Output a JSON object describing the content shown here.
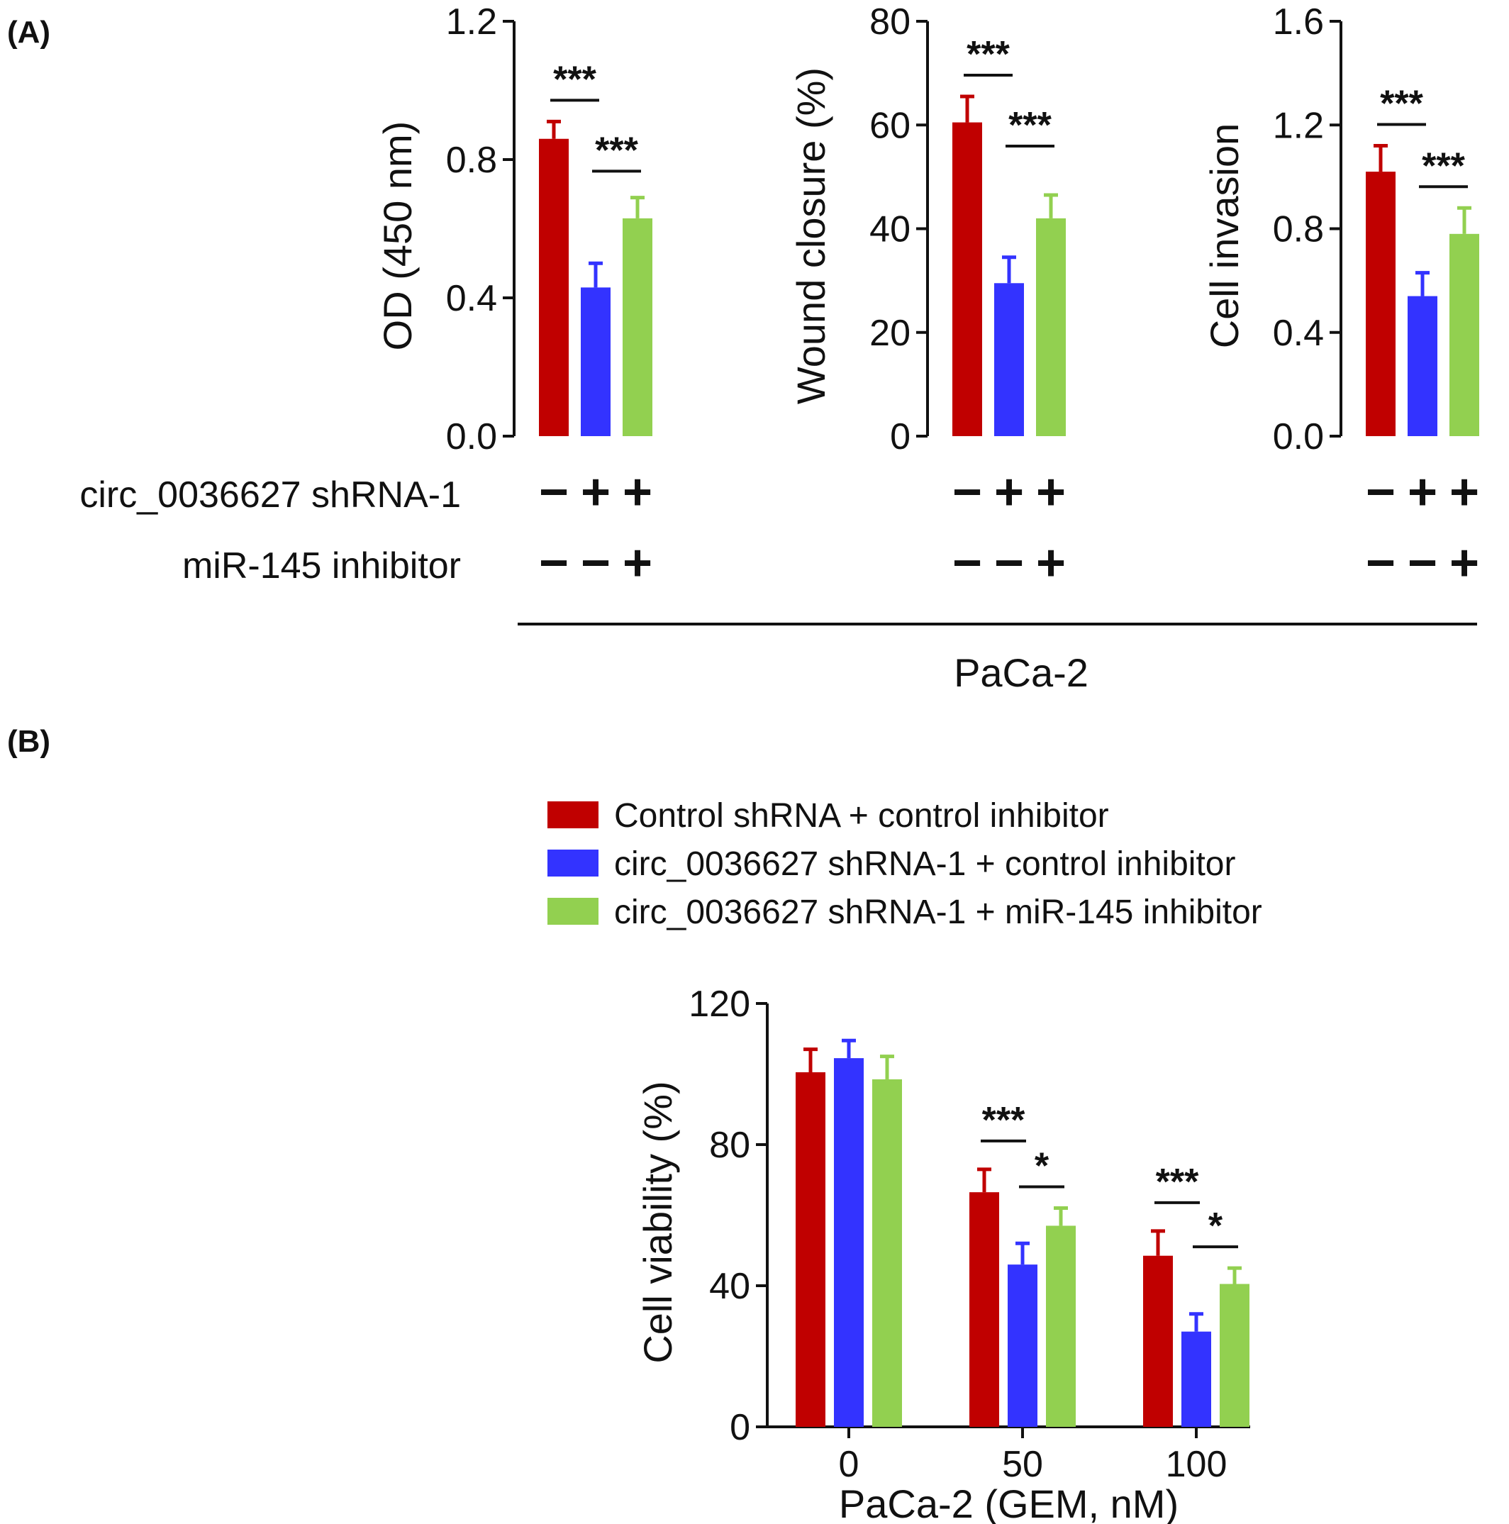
{
  "panel_labels": {
    "a": "(A)",
    "b": "(B)"
  },
  "row_labels": {
    "shrna": "circ_0036627 shRNA-1",
    "inhibitor": "miR-145 inhibitor"
  },
  "group_label": "PaCa-2",
  "colors": {
    "red": "#c00000",
    "blue": "#3333ff",
    "green": "#92d050"
  },
  "legend": [
    {
      "label": "Control shRNA + control inhibitor",
      "color": "#c00000"
    },
    {
      "label": "circ_0036627 shRNA-1 + control inhibitor",
      "color": "#3333ff"
    },
    {
      "label": "circ_0036627 shRNA-1 + miR-145 inhibitor",
      "color": "#92d050"
    }
  ],
  "chart_data": [
    {
      "type": "bar",
      "ylabel": "OD (450 nm)",
      "ylim": [
        0,
        1.2
      ],
      "yticks": [
        "0.0",
        "0.4",
        "0.8",
        "1.2"
      ],
      "shrna": [
        "−",
        "+",
        "+"
      ],
      "inhibitor": [
        "−",
        "−",
        "+"
      ],
      "values": [
        0.86,
        0.43,
        0.63
      ],
      "errors": [
        0.05,
        0.07,
        0.06
      ],
      "significance": [
        "***",
        "***"
      ]
    },
    {
      "type": "bar",
      "ylabel": "Wound closure (%)",
      "ylim": [
        0,
        80
      ],
      "yticks": [
        "0",
        "20",
        "40",
        "60",
        "80"
      ],
      "shrna": [
        "−",
        "+",
        "+"
      ],
      "inhibitor": [
        "−",
        "−",
        "+"
      ],
      "values": [
        60.5,
        29.5,
        42
      ],
      "errors": [
        5,
        5,
        4.5
      ],
      "significance": [
        "***",
        "***"
      ]
    },
    {
      "type": "bar",
      "ylabel": "Cell invasion",
      "ylim": [
        0,
        1.6
      ],
      "yticks": [
        "0.0",
        "0.4",
        "0.8",
        "1.2",
        "1.6"
      ],
      "shrna": [
        "−",
        "+",
        "+"
      ],
      "inhibitor": [
        "−",
        "−",
        "+"
      ],
      "values": [
        1.02,
        0.54,
        0.78
      ],
      "errors": [
        0.1,
        0.09,
        0.1
      ],
      "significance": [
        "***",
        "***"
      ]
    },
    {
      "type": "bar",
      "ylabel": "Cell viability (%)",
      "xlabel": "PaCa-2 (GEM, nM)",
      "ylim": [
        0,
        120
      ],
      "yticks": [
        "0",
        "40",
        "80",
        "120"
      ],
      "categories": [
        "0",
        "50",
        "100"
      ],
      "series": [
        {
          "name": "Control shRNA + control inhibitor",
          "values": [
            100.5,
            66.5,
            48.5
          ],
          "errors": [
            6.5,
            6.5,
            7
          ]
        },
        {
          "name": "circ_0036627 shRNA-1 + control inhibitor",
          "values": [
            104.5,
            46,
            27
          ],
          "errors": [
            5,
            6,
            5
          ]
        },
        {
          "name": "circ_0036627 shRNA-1 + miR-145 inhibitor",
          "values": [
            98.5,
            57,
            40.5
          ],
          "errors": [
            6.5,
            5,
            4.5
          ]
        }
      ],
      "significance": [
        {
          "category": "50",
          "labels": [
            "***",
            "*"
          ]
        },
        {
          "category": "100",
          "labels": [
            "***",
            "*"
          ]
        }
      ]
    }
  ]
}
